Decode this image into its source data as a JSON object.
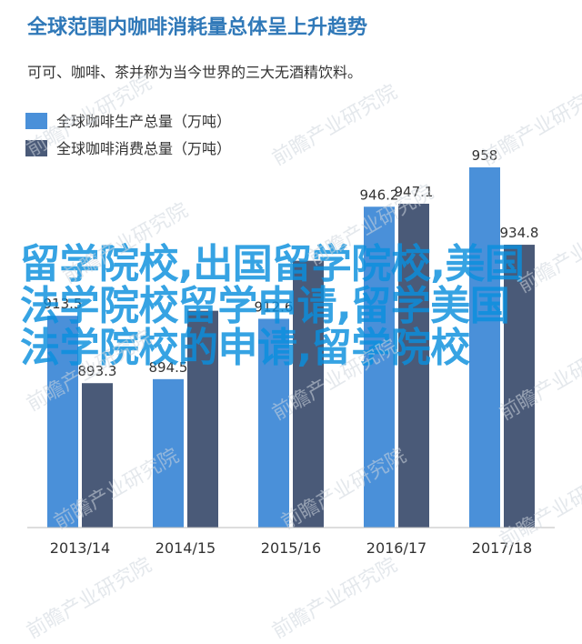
{
  "page": {
    "title": "全球范围内咖啡消耗量总体呈上升趋势",
    "subtitle": "可可、咖啡、茶并称为当今世界的三大无酒精饮料。",
    "overlay_text": "留学院校,出国留学院校,美国法学院校留学申请,留学美国法学院校的申请,留学院校",
    "watermark": "前瞻产业研究院"
  },
  "colors": {
    "production": "#4a90d9",
    "consumption": "#4a5a78",
    "title": "#2f78b8",
    "overlay": "#0a8fde"
  },
  "chart_data": {
    "type": "bar",
    "categories": [
      "2013/14",
      "2014/15",
      "2015/16",
      "2016/17",
      "2017/18"
    ],
    "series": [
      {
        "name": "全球咖啡生产总量（万吨）",
        "values": [
          913.5,
          894.5,
          912.6,
          946.2,
          958
        ],
        "labels": [
          "913.5",
          "894.5",
          "912.6",
          "946.2",
          "958"
        ]
      },
      {
        "name": "全球咖啡消费总量（万吨）",
        "values": [
          893.3,
          915,
          930,
          947.1,
          934.8
        ],
        "labels": [
          "893.3",
          "",
          "",
          "947.1",
          "934.8"
        ]
      }
    ],
    "title": "全球范围内咖啡消耗量总体呈上升趋势",
    "ylim": [
      850,
      970
    ],
    "grid": false,
    "legend": "top-left"
  }
}
